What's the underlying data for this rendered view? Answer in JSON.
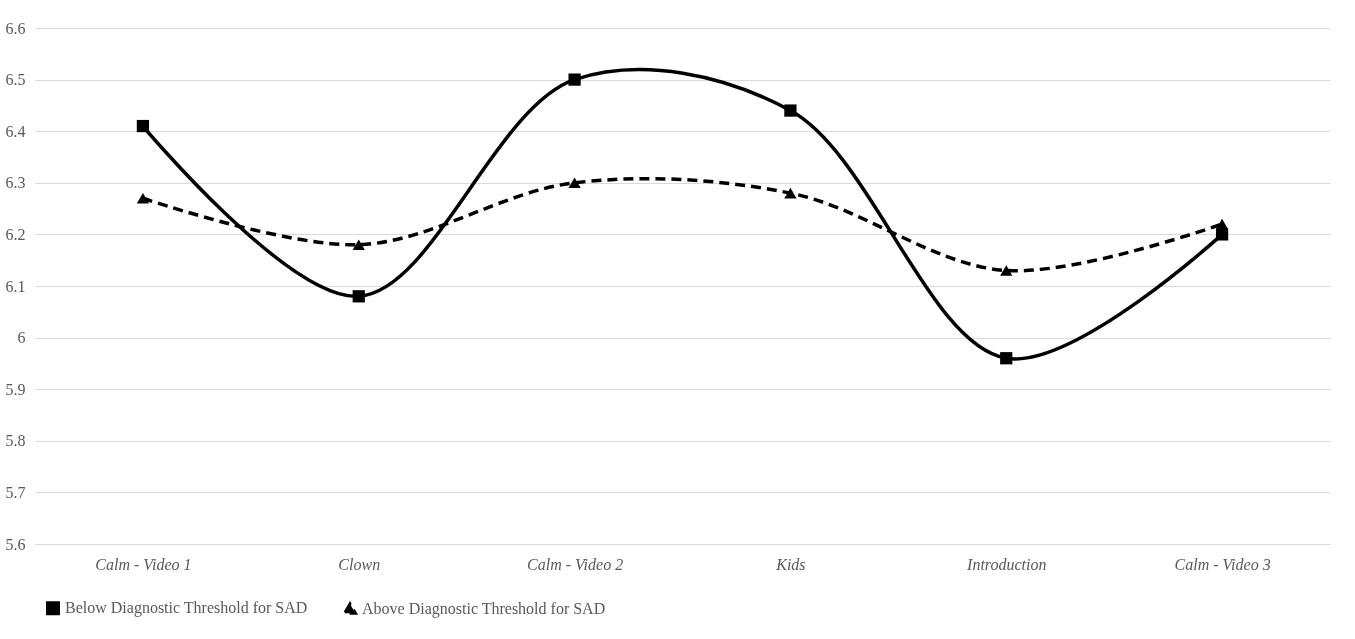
{
  "chart_data": {
    "type": "line",
    "categories": [
      "Calm - Video 1",
      "Clown",
      "Calm - Video 2",
      "Kids",
      "Introduction",
      "Calm - Video 3"
    ],
    "ylim": [
      5.6,
      6.6
    ],
    "yticks": [
      5.6,
      5.7,
      5.8,
      5.9,
      6,
      6.1,
      6.2,
      6.3,
      6.4,
      6.5,
      6.6
    ],
    "grid": "y",
    "legend": "bottom",
    "series": [
      {
        "name": "Below Diagnostic Threshold for SAD",
        "color": "#000000",
        "marker": "square",
        "line_style": "solid",
        "values": [
          6.41,
          6.08,
          6.5,
          6.44,
          5.96,
          6.2
        ]
      },
      {
        "name": "Above Diagnostic Threshold for SAD",
        "color": "#000000",
        "marker": "triangle",
        "line_style": "dashed",
        "values": [
          6.27,
          6.18,
          6.3,
          6.28,
          6.13,
          6.22
        ]
      }
    ]
  }
}
